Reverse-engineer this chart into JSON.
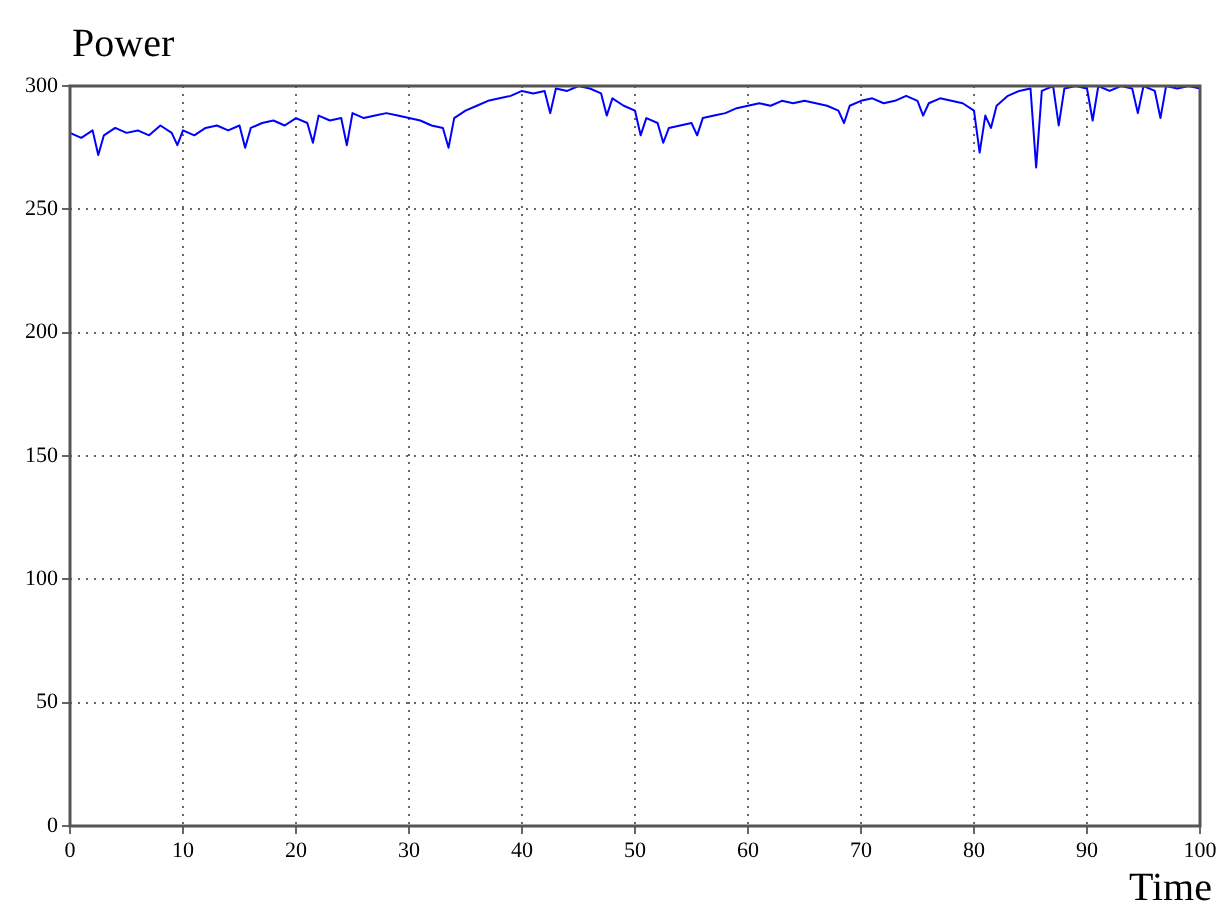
{
  "chart_data": {
    "type": "line",
    "xlabel": "Time",
    "ylabel": "Power",
    "xlim": [
      0,
      100
    ],
    "ylim": [
      0,
      300
    ],
    "xticks": [
      0,
      10,
      20,
      30,
      40,
      50,
      60,
      70,
      80,
      90,
      100
    ],
    "yticks": [
      0,
      50,
      100,
      150,
      200,
      250,
      300
    ],
    "grid": true,
    "marker": "none",
    "line_style": "solid",
    "series": [
      {
        "color": "#0000ff",
        "x": [
          0,
          1,
          2,
          2.5,
          3,
          4,
          5,
          6,
          7,
          8,
          9,
          9.5,
          10,
          11,
          12,
          13,
          14,
          15,
          15.5,
          16,
          17,
          18,
          19,
          20,
          21,
          21.5,
          22,
          23,
          24,
          24.5,
          25,
          26,
          27,
          28,
          29,
          30,
          31,
          32,
          33,
          33.5,
          34,
          35,
          36,
          37,
          38,
          39,
          40,
          41,
          42,
          42.5,
          43,
          44,
          45,
          46,
          47,
          47.5,
          48,
          49,
          50,
          50.5,
          51,
          52,
          52.5,
          53,
          54,
          55,
          55.5,
          56,
          57,
          58,
          59,
          60,
          61,
          62,
          63,
          64,
          65,
          66,
          67,
          68,
          68.5,
          69,
          70,
          71,
          72,
          73,
          74,
          75,
          75.5,
          76,
          77,
          78,
          79,
          80,
          80.5,
          81,
          81.5,
          82,
          83,
          84,
          85,
          85.5,
          86,
          87,
          87.5,
          88,
          89,
          90,
          90.5,
          91,
          92,
          93,
          94,
          94.5,
          95,
          96,
          96.5,
          97,
          98,
          99,
          100
        ],
        "values": [
          281,
          279,
          282,
          272,
          280,
          283,
          281,
          282,
          280,
          284,
          281,
          276,
          282,
          280,
          283,
          284,
          282,
          284,
          275,
          283,
          285,
          286,
          284,
          287,
          285,
          277,
          288,
          286,
          287,
          276,
          289,
          287,
          288,
          289,
          288,
          287,
          286,
          284,
          283,
          275,
          287,
          290,
          292,
          294,
          295,
          296,
          298,
          297,
          298,
          289,
          299,
          298,
          300,
          299,
          297,
          288,
          295,
          292,
          290,
          280,
          287,
          285,
          277,
          283,
          284,
          285,
          280,
          287,
          288,
          289,
          291,
          292,
          293,
          292,
          294,
          293,
          294,
          293,
          292,
          290,
          285,
          292,
          294,
          295,
          293,
          294,
          296,
          294,
          288,
          293,
          295,
          294,
          293,
          290,
          273,
          288,
          283,
          292,
          296,
          298,
          299,
          267,
          298,
          300,
          284,
          299,
          300,
          299,
          286,
          300,
          298,
          300,
          299,
          289,
          300,
          298,
          287,
          300,
          299,
          300,
          299
        ]
      }
    ]
  }
}
